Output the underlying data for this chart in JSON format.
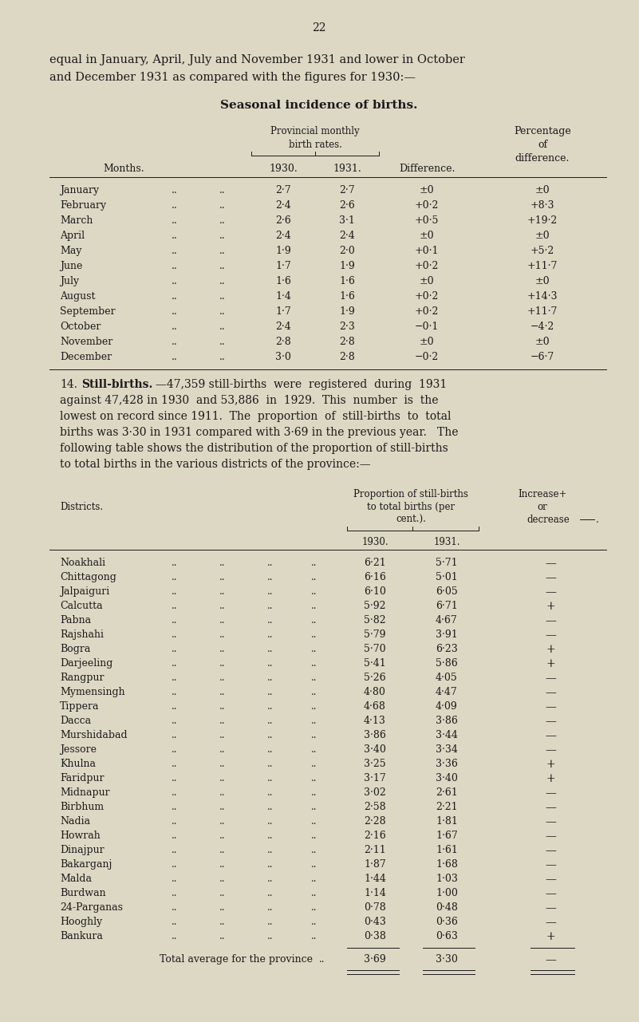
{
  "bg_color": "#ddd8c4",
  "text_color": "#1a1a1a",
  "page_number": "22",
  "intro_line1": "equal in January, April, July and November 1931 and lower in October",
  "intro_line2": "and December 1931 as compared with the figures for 1930:—",
  "table1_title": "Seasonal incidence of births.",
  "table1_rows": [
    [
      "January",
      "2·7",
      "2·7",
      "±0",
      "±0"
    ],
    [
      "February",
      "2·4",
      "2·6",
      "+0·2",
      "+8·3"
    ],
    [
      "March",
      "2·6",
      "3·1",
      "+0·5",
      "+19·2"
    ],
    [
      "April",
      "2·4",
      "2·4",
      "±0",
      "±0"
    ],
    [
      "May",
      "1·9",
      "2·0",
      "+0·1",
      "+5·2"
    ],
    [
      "June",
      "1·7",
      "1·9",
      "+0·2",
      "+11·7"
    ],
    [
      "July",
      "1·6",
      "1·6",
      "±0",
      "±0"
    ],
    [
      "August",
      "1·4",
      "1·6",
      "+0·2",
      "+14·3"
    ],
    [
      "September",
      "1·7",
      "1·9",
      "+0·2",
      "+11·7"
    ],
    [
      "October",
      "2·4",
      "2·3",
      "−0·1",
      "−4·2"
    ],
    [
      "November",
      "2·8",
      "2·8",
      "±0",
      "±0"
    ],
    [
      "December",
      "3·0",
      "2·8",
      "−0·2",
      "−6·7"
    ]
  ],
  "para14_lines": [
    "14.  †Still-births.‡—47,359 still-births  were  registered  during  1931",
    "against 47,428 in 1930  and 53,886  in  1929.  This  number  is  the",
    "lowest on record since 1911.  The  proportion  of  still-births  to  total",
    "births was 3·30 in 1931 compared with 3·69 in the previous year.   The",
    "following table shows the distribution of the proportion of still-births",
    "to total births in the various districts of the province:—"
  ],
  "table2_rows": [
    [
      "Noakhali",
      "6·21",
      "5·71",
      "—"
    ],
    [
      "Chittagong",
      "6·16",
      "5·01",
      "—"
    ],
    [
      "Jalpaiguri",
      "6·10",
      "6·05",
      "—"
    ],
    [
      "Calcutta",
      "5·92",
      "6·71",
      "+"
    ],
    [
      "Pabna",
      "5·82",
      "4·67",
      "—"
    ],
    [
      "Rajshahi",
      "5·79",
      "3·91",
      "—"
    ],
    [
      "Bogra",
      "5·70",
      "6·23",
      "+"
    ],
    [
      "Darjeeling",
      "5·41",
      "5·86",
      "+"
    ],
    [
      "Rangpur",
      "5·26",
      "4·05",
      "—"
    ],
    [
      "Mymensingh",
      "4·80",
      "4·47",
      "—"
    ],
    [
      "Tippera",
      "4·68",
      "4·09",
      "—"
    ],
    [
      "Dacca",
      "4·13",
      "3·86",
      "—"
    ],
    [
      "Murshidabad",
      "3·86",
      "3·44",
      "—"
    ],
    [
      "Jessore",
      "3·40",
      "3·34",
      "—"
    ],
    [
      "Khulna",
      "3·25",
      "3·36",
      "+"
    ],
    [
      "Faridpur",
      "3·17",
      "3·40",
      "+"
    ],
    [
      "Midnapur",
      "3·02",
      "2·61",
      "—"
    ],
    [
      "Birbhum",
      "2·58",
      "2·21",
      "—"
    ],
    [
      "Nadia",
      "2·28",
      "1·81",
      "—"
    ],
    [
      "Howrah",
      "2·16",
      "1·67",
      "—"
    ],
    [
      "Dinajpur",
      "2·11",
      "1·61",
      "—"
    ],
    [
      "Bakarganj",
      "1·87",
      "1·68",
      "—"
    ],
    [
      "Malda",
      "1·44",
      "1·03",
      "—"
    ],
    [
      "Burdwan",
      "1·14",
      "1·00",
      "—"
    ],
    [
      "24-Parganas",
      "0·78",
      "0·48",
      "—"
    ],
    [
      "Hooghly",
      "0·43",
      "0·36",
      "—"
    ],
    [
      "Bankura",
      "0·38",
      "0·63",
      "+"
    ]
  ],
  "table2_total_label": "Total average for the province",
  "table2_total_1930": "3·69",
  "table2_total_1931": "3·30",
  "table2_total_change": "—"
}
